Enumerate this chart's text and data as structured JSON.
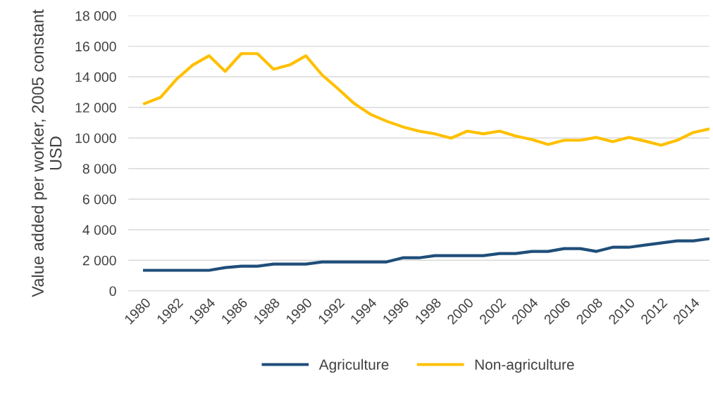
{
  "chart_data": {
    "type": "line",
    "ylabel": "Value added per worker, 2005 constant USD",
    "categories": [
      "1980",
      null,
      "1982",
      null,
      "1984",
      null,
      "1986",
      null,
      "1988",
      null,
      "1990",
      null,
      "1992",
      null,
      "1994",
      null,
      "1996",
      null,
      "1998",
      null,
      "2000",
      null,
      "2002",
      null,
      "2004",
      null,
      "2006",
      null,
      "2008",
      null,
      "2010",
      null,
      "2012",
      null,
      "2014",
      null
    ],
    "series": [
      {
        "name": "Agriculture",
        "color": "#1f4e79",
        "values": [
          1340,
          1340,
          1340,
          1340,
          1340,
          1520,
          1610,
          1610,
          1750,
          1750,
          1750,
          1890,
          1890,
          1890,
          1890,
          1890,
          2160,
          2160,
          2300,
          2300,
          2300,
          2300,
          2440,
          2440,
          2580,
          2580,
          2760,
          2760,
          2580,
          2850,
          2850,
          2990,
          3130,
          3270,
          3270,
          3410
        ]
      },
      {
        "name": "Non-agriculture",
        "color": "#ffc000",
        "values": [
          12250,
          12660,
          13860,
          14780,
          15380,
          14360,
          15520,
          15520,
          14500,
          14780,
          15380,
          14130,
          13210,
          12250,
          11550,
          11100,
          10730,
          10450,
          10270,
          9990,
          10450,
          10270,
          10450,
          10130,
          9900,
          9580,
          9850,
          9850,
          10040,
          9760,
          10040,
          9800,
          9530,
          9850,
          10360,
          10590
        ]
      }
    ],
    "ylim": [
      0,
      18000
    ],
    "yticks": [
      0,
      {
        "value": 2000,
        "label": "2 000"
      },
      {
        "value": 4000,
        "label": "4 000"
      },
      {
        "value": 6000,
        "label": "6 000"
      },
      {
        "value": 8000,
        "label": "8 000"
      },
      {
        "value": 10000,
        "label": "10 000"
      },
      {
        "value": 12000,
        "label": "12 000"
      },
      {
        "value": 14000,
        "label": "14 000"
      },
      {
        "value": 16000,
        "label": "16 000"
      },
      {
        "value": 18000,
        "label": "18 000"
      }
    ],
    "grid": "y",
    "legend": "bottom",
    "marker": "none",
    "line_style": "solid"
  }
}
